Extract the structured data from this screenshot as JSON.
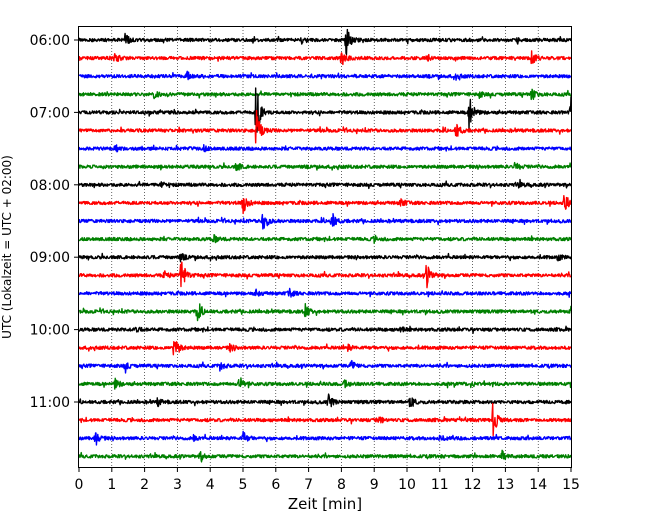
{
  "chart_data": {
    "type": "line",
    "title": "",
    "xlabel": "Zeit  [min]",
    "ylabel": "UTC (Lokalzeit = UTC + 02:00)",
    "xlim": [
      0,
      15
    ],
    "x_ticks": [
      "0",
      "1",
      "2",
      "3",
      "4",
      "5",
      "6",
      "7",
      "8",
      "9",
      "10",
      "11",
      "12",
      "13",
      "14",
      "15"
    ],
    "y_ticks": [
      {
        "label": "06:00",
        "trace": 0
      },
      {
        "label": "07:00",
        "trace": 4
      },
      {
        "label": "08:00",
        "trace": 8
      },
      {
        "label": "09:00",
        "trace": 12
      },
      {
        "label": "10:00",
        "trace": 16
      },
      {
        "label": "11:00",
        "trace": 20
      }
    ],
    "grid": "vertical dotted",
    "trace_colors": [
      "#000000",
      "#ff0000",
      "#0000ff",
      "#008000"
    ],
    "traces": [
      {
        "start": "06:00",
        "events": [
          [
            1.4,
            0.35
          ],
          [
            6.8,
            0.2
          ],
          [
            8.15,
            0.8
          ],
          [
            13.3,
            0.2
          ]
        ]
      },
      {
        "start": "06:15",
        "events": [
          [
            1.1,
            0.25
          ],
          [
            8.0,
            0.45
          ],
          [
            10.6,
            0.2
          ],
          [
            13.8,
            0.35
          ]
        ]
      },
      {
        "start": "06:30",
        "events": [
          [
            3.3,
            0.2
          ],
          [
            11.5,
            0.15
          ]
        ]
      },
      {
        "start": "06:45",
        "events": [
          [
            2.3,
            0.2
          ],
          [
            12.2,
            0.15
          ],
          [
            13.8,
            0.35
          ]
        ]
      },
      {
        "start": "07:00",
        "events": [
          [
            5.4,
            1.9
          ],
          [
            11.9,
            1.05
          ],
          [
            15.0,
            0.95
          ]
        ]
      },
      {
        "start": "07:15",
        "events": [
          [
            5.4,
            1.25
          ],
          [
            11.5,
            0.45
          ]
        ]
      },
      {
        "start": "07:30",
        "events": [
          [
            1.1,
            0.2
          ],
          [
            3.8,
            0.15
          ]
        ]
      },
      {
        "start": "07:45",
        "events": [
          [
            4.8,
            0.25
          ],
          [
            13.3,
            0.25
          ]
        ]
      },
      {
        "start": "08:00",
        "events": [
          [
            2.5,
            0.2
          ],
          [
            13.4,
            0.15
          ]
        ]
      },
      {
        "start": "08:15",
        "events": [
          [
            5.0,
            0.6
          ],
          [
            9.8,
            0.25
          ],
          [
            14.8,
            0.6
          ]
        ]
      },
      {
        "start": "08:30",
        "events": [
          [
            5.6,
            0.7
          ],
          [
            7.7,
            0.55
          ]
        ]
      },
      {
        "start": "08:45",
        "events": [
          [
            4.1,
            0.2
          ],
          [
            9.0,
            0.15
          ]
        ]
      },
      {
        "start": "09:00",
        "events": [
          [
            3.1,
            0.2
          ],
          [
            14.6,
            0.15
          ]
        ]
      },
      {
        "start": "09:15",
        "events": [
          [
            3.1,
            1.15
          ],
          [
            10.6,
            0.75
          ],
          [
            2.6,
            0.2
          ]
        ]
      },
      {
        "start": "09:30",
        "events": [
          [
            5.4,
            0.2
          ],
          [
            6.4,
            0.25
          ]
        ]
      },
      {
        "start": "09:45",
        "events": [
          [
            3.6,
            0.55
          ],
          [
            6.9,
            0.35
          ],
          [
            15.0,
            0.3
          ]
        ]
      },
      {
        "start": "10:00",
        "events": [
          [
            1.7,
            0.25
          ],
          [
            9.8,
            0.15
          ]
        ]
      },
      {
        "start": "10:15",
        "events": [
          [
            2.9,
            0.75
          ],
          [
            4.6,
            0.2
          ],
          [
            8.2,
            0.15
          ]
        ]
      },
      {
        "start": "10:30",
        "events": [
          [
            1.4,
            0.25
          ],
          [
            4.3,
            0.25
          ],
          [
            8.3,
            0.25
          ]
        ]
      },
      {
        "start": "10:45",
        "events": [
          [
            1.1,
            0.3
          ],
          [
            4.9,
            0.5
          ],
          [
            8.1,
            0.2
          ]
        ]
      },
      {
        "start": "11:00",
        "events": [
          [
            7.6,
            0.45
          ],
          [
            10.1,
            0.3
          ],
          [
            2.4,
            0.2
          ]
        ]
      },
      {
        "start": "11:15",
        "events": [
          [
            12.6,
            1.05
          ],
          [
            9.1,
            0.3
          ]
        ]
      },
      {
        "start": "11:30",
        "events": [
          [
            0.5,
            0.4
          ],
          [
            5.0,
            0.35
          ],
          [
            3.5,
            0.15
          ],
          [
            11.0,
            0.15
          ]
        ]
      },
      {
        "start": "11:45",
        "events": [
          [
            3.7,
            0.25
          ],
          [
            12.9,
            0.25
          ]
        ]
      }
    ]
  }
}
